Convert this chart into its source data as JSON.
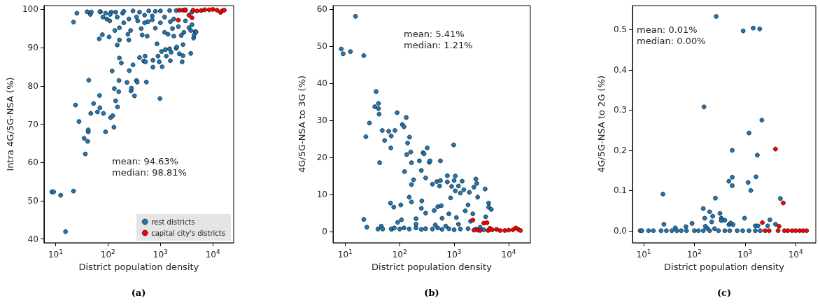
{
  "chart_data": [
    {
      "type": "scatter",
      "xlabel": "District population density",
      "ylabel": "Intra 4G/5G-NSA (%)",
      "log": "x",
      "grid": false,
      "legend": "bottom right",
      "marker": "circle",
      "xlim": [
        6,
        25000
      ],
      "xticks": [
        {
          "value": 10,
          "label": "10$^{1}$"
        },
        {
          "value": 100,
          "label": "10$^{2}$"
        },
        {
          "value": 1000,
          "label": "10$^{3}$"
        },
        {
          "value": 10000,
          "label": "10$^{4}$"
        }
      ],
      "ylim": [
        39,
        101
      ],
      "yticks": [
        40,
        50,
        60,
        70,
        80,
        90,
        100
      ],
      "annotations": [
        "mean: 94.63%\nmedian: 98.81%",
        "(a)"
      ],
      "series": [
        {
          "name": "rest districts",
          "color": "#1f77b4",
          "x": [
            8.5,
            9.2,
            12.5,
            15.5,
            22,
            22,
            24,
            25.5,
            28,
            35,
            37,
            40,
            41,
            42,
            42,
            43,
            46,
            47,
            48,
            53,
            63,
            68,
            69,
            70,
            72,
            78,
            80,
            82,
            90,
            95,
            105,
            108,
            112,
            115,
            120,
            123,
            130,
            132,
            135,
            140,
            150,
            152,
            160,
            162,
            165,
            165,
            165,
            180,
            190,
            200,
            230,
            240,
            250,
            255,
            270,
            275,
            280,
            300,
            320,
            350,
            360,
            370,
            400,
            430,
            450,
            480,
            500,
            510,
            520,
            540,
            560,
            580,
            700,
            720,
            720,
            800,
            860,
            900,
            950,
            980,
            1000,
            1050,
            1080,
            1200,
            1250,
            1300,
            1400,
            1500,
            1550,
            1550,
            1600,
            1700,
            1800,
            2000,
            2050,
            2200,
            2300,
            2500,
            2600,
            2700,
            2700,
            2800,
            3000,
            3500,
            3800,
            3800,
            4000,
            4300,
            4400,
            4600,
            4800,
            70,
            90,
            110,
            140,
            200,
            300,
            400,
            600,
            800,
            1000,
            1500,
            2000,
            3000,
            4000,
            150,
            250,
            350,
            500,
            700,
            1200,
            1800
          ],
          "values": [
            52.3,
            52.3,
            51.4,
            41.9,
            52.5,
            96.7,
            75,
            99,
            70.7,
            66.3,
            62.2,
            99.4,
            65.5,
            68,
            68.5,
            81.5,
            98.7,
            72.8,
            99.3,
            75.4,
            73.2,
            92.3,
            77.5,
            74.3,
            99.4,
            93.4,
            98,
            72.8,
            68,
            97.5,
            92.8,
            97,
            71.7,
            99.3,
            83.9,
            72.2,
            69.2,
            79.3,
            94.5,
            76.1,
            90.7,
            74.5,
            78.5,
            81.4,
            87.3,
            95.2,
            92,
            86,
            99,
            96.5,
            80.9,
            93.5,
            92,
            84,
            94.5,
            78.7,
            79.4,
            85.5,
            77.4,
            81.4,
            81,
            97,
            87.4,
            95,
            93.3,
            86.5,
            96.5,
            87.8,
            86.3,
            81,
            93,
            96.8,
            97.3,
            86.7,
            84.9,
            95.1,
            91,
            87.8,
            86.3,
            76.7,
            96.5,
            89,
            85,
            94,
            89.5,
            87.8,
            93.5,
            89.7,
            96.8,
            86.6,
            88.8,
            95,
            93,
            89.8,
            90.2,
            95.5,
            88.4,
            93.2,
            86.3,
            87.9,
            90.8,
            94,
            97,
            95.2,
            88.5,
            94.5,
            96,
            92.5,
            93.3,
            94.2,
            94.1,
            99.4,
            99,
            98.7,
            99.3,
            99.5,
            99.6,
            99.3,
            99.6,
            99.5,
            99.6,
            99.7,
            99.7,
            99.8,
            99.3,
            98,
            97.5,
            98,
            98.5,
            98.3,
            98,
            97.5
          ]
        },
        {
          "name": "capital city's districts",
          "color": "#ff0000",
          "x": [
            2200,
            2300,
            2700,
            3000,
            3500,
            4000,
            4200,
            5000,
            6000,
            7000,
            8500,
            10000,
            12000,
            14000,
            15000,
            16500
          ],
          "values": [
            97.2,
            99.8,
            99.8,
            99.9,
            98.5,
            97.8,
            99.8,
            99.6,
            99.7,
            99.9,
            99.9,
            100,
            99.8,
            99.2,
            99.6,
            99.8
          ]
        }
      ]
    },
    {
      "type": "scatter",
      "xlabel": "District population density",
      "ylabel": "4G/5G-NSA to 3G (%)",
      "log": "x",
      "grid": false,
      "marker": "circle",
      "xlim": [
        6,
        25000
      ],
      "xticks": [
        {
          "value": 10,
          "label": "10$^{1}$"
        },
        {
          "value": 100,
          "label": "10$^{2}$"
        },
        {
          "value": 1000,
          "label": "10$^{3}$"
        },
        {
          "value": 10000,
          "label": "10$^{4}$"
        }
      ],
      "ylim": [
        -3,
        61
      ],
      "yticks": [
        0,
        10,
        20,
        30,
        40,
        50,
        60
      ],
      "annotations": [
        "mean: 5.41%\nmedian: 1.21%",
        "(b)"
      ],
      "series": [
        {
          "color": "#1f77b4",
          "x": [
            8.5,
            9.2,
            12.5,
            15.5,
            22,
            22,
            24,
            25,
            28,
            35,
            37,
            40,
            41,
            41,
            42,
            43,
            46,
            48,
            49,
            53,
            63,
            68,
            69,
            70,
            72,
            78,
            82,
            90,
            92,
            105,
            108,
            112,
            120,
            123,
            132,
            135,
            140,
            150,
            152,
            160,
            165,
            165,
            165,
            180,
            200,
            230,
            250,
            255,
            270,
            280,
            300,
            320,
            350,
            360,
            400,
            430,
            480,
            500,
            540,
            560,
            560,
            580,
            750,
            750,
            860,
            900,
            980,
            1000,
            1050,
            1050,
            1200,
            1300,
            1400,
            1500,
            1800,
            1900,
            2300,
            2500,
            2600,
            2700,
            3700,
            4300,
            4300,
            4800,
            2200,
            1100,
            1600,
            300,
            250,
            600,
            800,
            2000,
            3800,
            70,
            80,
            100,
            120,
            150,
            200,
            250,
            300,
            400,
            500,
            600,
            800,
            1000,
            1300,
            1800,
            2500,
            3500,
            4500,
            200,
            450,
            700,
            1200,
            3000
          ],
          "values": [
            49.3,
            48,
            48.6,
            58.1,
            47.5,
            3.3,
            25.6,
            1.2,
            29.3,
            33.7,
            37.8,
            0.7,
            34.6,
            33.2,
            31.7,
            18.6,
            1.5,
            27.3,
            0.7,
            24.6,
            27.1,
            7.7,
            22.6,
            25.8,
            0.7,
            6.6,
            27.3,
            32.1,
            2.5,
            7.2,
            3.2,
            28.9,
            28.3,
            16.2,
            30.8,
            20.8,
            23.9,
            9.3,
            25.5,
            21.5,
            18.6,
            12.7,
            8,
            14,
            3.5,
            19.1,
            16.5,
            8.3,
            21.3,
            21,
            14.5,
            22.6,
            18.7,
            19.1,
            12.8,
            5.7,
            13.5,
            6.7,
            12.3,
            13.8,
            19.1,
            7,
            15.1,
            13.4,
            9.1,
            12.2,
            23.4,
            13.8,
            15,
            11,
            12.3,
            10.4,
            13.6,
            11.3,
            7.2,
            10.6,
            12,
            14.2,
            13,
            9.3,
            11.5,
            7.7,
            6.6,
            6,
            4.8,
            3.8,
            5.6,
            5,
            6.3,
            3.6,
            4.8,
            2.8,
            4,
            0.7,
            1,
            0.7,
            1,
            0.7,
            1,
            0.6,
            0.8,
            0.7,
            1,
            0.6,
            0.8,
            0.5,
            0.7,
            0.8,
            0.7,
            0.5,
            0.6,
            2,
            1.8,
            1.5,
            2,
            1.2
          ]
        },
        {
          "color": "#ff0000",
          "x": [
            2200,
            2300,
            2700,
            3000,
            3500,
            4000,
            4200,
            4500,
            5000,
            6000,
            7000,
            8500,
            10000,
            12000,
            13500,
            15000,
            16500
          ],
          "values": [
            3.1,
            0.4,
            0.4,
            0.3,
            2.3,
            2.4,
            0.3,
            0.9,
            0.5,
            0.6,
            0.3,
            0.3,
            0.4,
            0.5,
            1,
            0.6,
            0.3
          ]
        }
      ]
    },
    {
      "type": "scatter",
      "xlabel": "District population density",
      "ylabel": "4G/5G-NSA to 2G (%)",
      "log": "x",
      "grid": false,
      "marker": "circle",
      "xlim": [
        6,
        25000
      ],
      "xticks": [
        {
          "value": 10,
          "label": "10$^{1}$"
        },
        {
          "value": 100,
          "label": "10$^{2}$"
        },
        {
          "value": 1000,
          "label": "10$^{3}$"
        },
        {
          "value": 10000,
          "label": "10$^{4}$"
        }
      ],
      "ylim": [
        -0.03,
        0.56
      ],
      "yticks": [
        {
          "value": 0,
          "label": "0.0"
        },
        0.1,
        0.2,
        0.3,
        0.4,
        0.5
      ],
      "annotations": [
        "mean: 0.01%\nmedian: 0.00%",
        "(c)"
      ],
      "series": [
        {
          "color": "#1f77b4",
          "x": [
            8.5,
            9.2,
            12.5,
            15.5,
            22,
            24,
            25,
            28,
            36,
            42,
            45,
            55,
            68,
            70,
            90,
            100,
            150,
            155,
            160,
            165,
            180,
            200,
            220,
            230,
            250,
            260,
            270,
            320,
            340,
            340,
            400,
            480,
            480,
            520,
            560,
            560,
            560,
            580,
            920,
            980,
            1150,
            1200,
            1300,
            1450,
            1600,
            1650,
            1750,
            1800,
            1950,
            2150,
            2800,
            3100,
            4000,
            5000,
            120,
            150,
            200,
            300,
            400,
            500,
            700,
            900,
            1200,
            1600,
            2000
          ],
          "values": [
            0,
            0,
            0,
            0,
            0,
            0.091,
            0.016,
            0,
            0,
            0.007,
            0,
            0,
            0.01,
            0,
            0.018,
            0,
            0.055,
            0.308,
            0.031,
            0.011,
            0.006,
            0.047,
            0.022,
            0.036,
            0.005,
            0.081,
            0.533,
            0.043,
            0.031,
            0.025,
            0.026,
            0.123,
            0.015,
            0.019,
            0.133,
            0.112,
            0.2,
            0.015,
            0.497,
            0.031,
            0.12,
            0.243,
            0.1,
            0.504,
            0.012,
            0.134,
            0.188,
            0.012,
            0.502,
            0.275,
            0.012,
            0.027,
            0.016,
            0.08,
            0,
            0,
            0,
            0,
            0,
            0,
            0,
            0,
            0,
            0,
            0
          ]
        },
        {
          "color": "#ff0000",
          "x": [
            2200,
            2500,
            3000,
            4000,
            4700,
            5700,
            4500,
            6000,
            7000,
            8500,
            10000,
            12000,
            14000,
            16500
          ],
          "values": [
            0.02,
            0,
            0,
            0.203,
            0.011,
            0.069,
            0,
            0,
            0,
            0,
            0,
            0,
            0,
            0
          ]
        }
      ]
    }
  ]
}
